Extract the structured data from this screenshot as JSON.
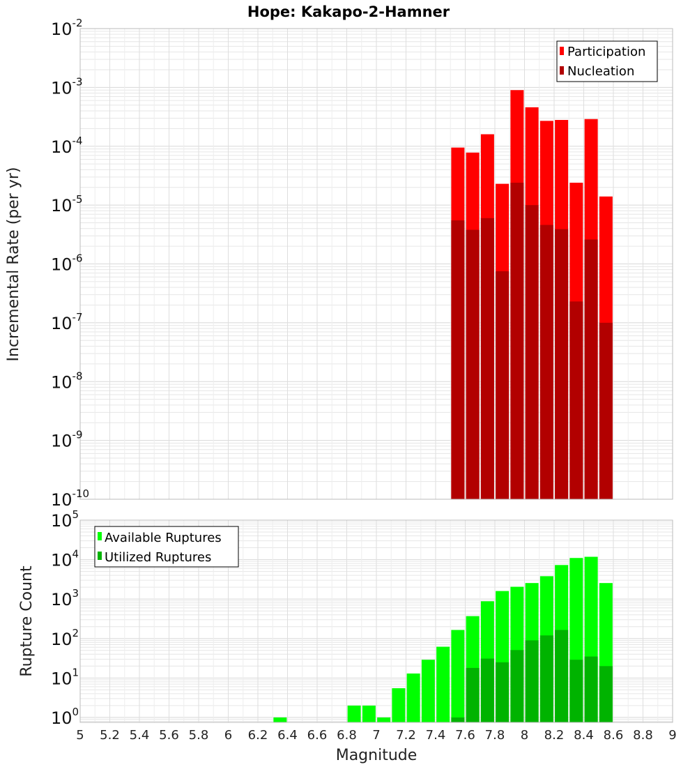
{
  "title": "Hope: Kakapo-2-Hamner",
  "x_axis": {
    "label": "Magnitude",
    "ticks": [
      "5",
      "5.2",
      "5.4",
      "5.6",
      "5.8",
      "6",
      "6.2",
      "6.4",
      "6.6",
      "6.8",
      "7",
      "7.2",
      "7.4",
      "7.6",
      "7.8",
      "8",
      "8.2",
      "8.4",
      "8.6",
      "8.8",
      "9"
    ]
  },
  "colors": {
    "participation": "#ff0000",
    "nucleation": "#b20000",
    "available": "#00ff00",
    "utilized": "#00b300",
    "frame": "#bbbbbb",
    "grid": "#e6e6e6"
  },
  "chart_data": [
    {
      "type": "bar",
      "title": "Hope: Kakapo-2-Hamner",
      "ylabel": "Incremental Rate (per yr)",
      "yscale": "log",
      "ylim": [
        1e-10,
        0.01
      ],
      "xlim": [
        5,
        9
      ],
      "y_tick_exponents": [
        "-2",
        "-3",
        "-4",
        "-5",
        "-6",
        "-7",
        "-8",
        "-9",
        "-10"
      ],
      "legend": {
        "position": "top-right",
        "entries": [
          "Participation",
          "Nucleation"
        ]
      },
      "x": [
        7.55,
        7.65,
        7.75,
        7.85,
        7.95,
        8.05,
        8.15,
        8.25,
        8.35,
        8.45,
        8.55
      ],
      "series": [
        {
          "name": "Participation",
          "values": [
            9.5e-05,
            7.8e-05,
            0.00016,
            2.3e-05,
            0.0009,
            0.00046,
            0.00027,
            0.00028,
            2.4e-05,
            0.00029,
            1.4e-05
          ]
        },
        {
          "name": "Nucleation",
          "values": [
            5.5e-06,
            3.8e-06,
            6e-06,
            7.5e-07,
            2.4e-05,
            1e-05,
            4.6e-06,
            3.9e-06,
            2.3e-07,
            2.6e-06,
            1e-07
          ]
        }
      ]
    },
    {
      "type": "bar",
      "xlabel": "Magnitude",
      "ylabel": "Rupture Count",
      "yscale": "log",
      "ylim": [
        0.75,
        100000
      ],
      "xlim": [
        5,
        9
      ],
      "y_tick_exponents": [
        "0",
        "1",
        "2",
        "3",
        "4",
        "5"
      ],
      "legend": {
        "position": "top-left",
        "entries": [
          "Available Ruptures",
          "Utilized Ruptures"
        ]
      },
      "x": [
        6.35,
        6.85,
        6.95,
        7.05,
        7.15,
        7.25,
        7.35,
        7.45,
        7.55,
        7.65,
        7.75,
        7.85,
        7.95,
        8.05,
        8.15,
        8.25,
        8.35,
        8.45,
        8.55
      ],
      "series": [
        {
          "name": "Available Ruptures",
          "values": [
            1,
            2,
            2,
            1,
            5.5,
            13,
            29,
            62,
            165,
            370,
            880,
            1600,
            2050,
            2550,
            3800,
            7300,
            11000,
            11800,
            2550
          ]
        },
        {
          "name": "Utilized Ruptures",
          "values": [
            null,
            null,
            null,
            null,
            null,
            null,
            null,
            null,
            1,
            18,
            31,
            25,
            51,
            90,
            120,
            165,
            29,
            35,
            20
          ]
        }
      ]
    }
  ]
}
